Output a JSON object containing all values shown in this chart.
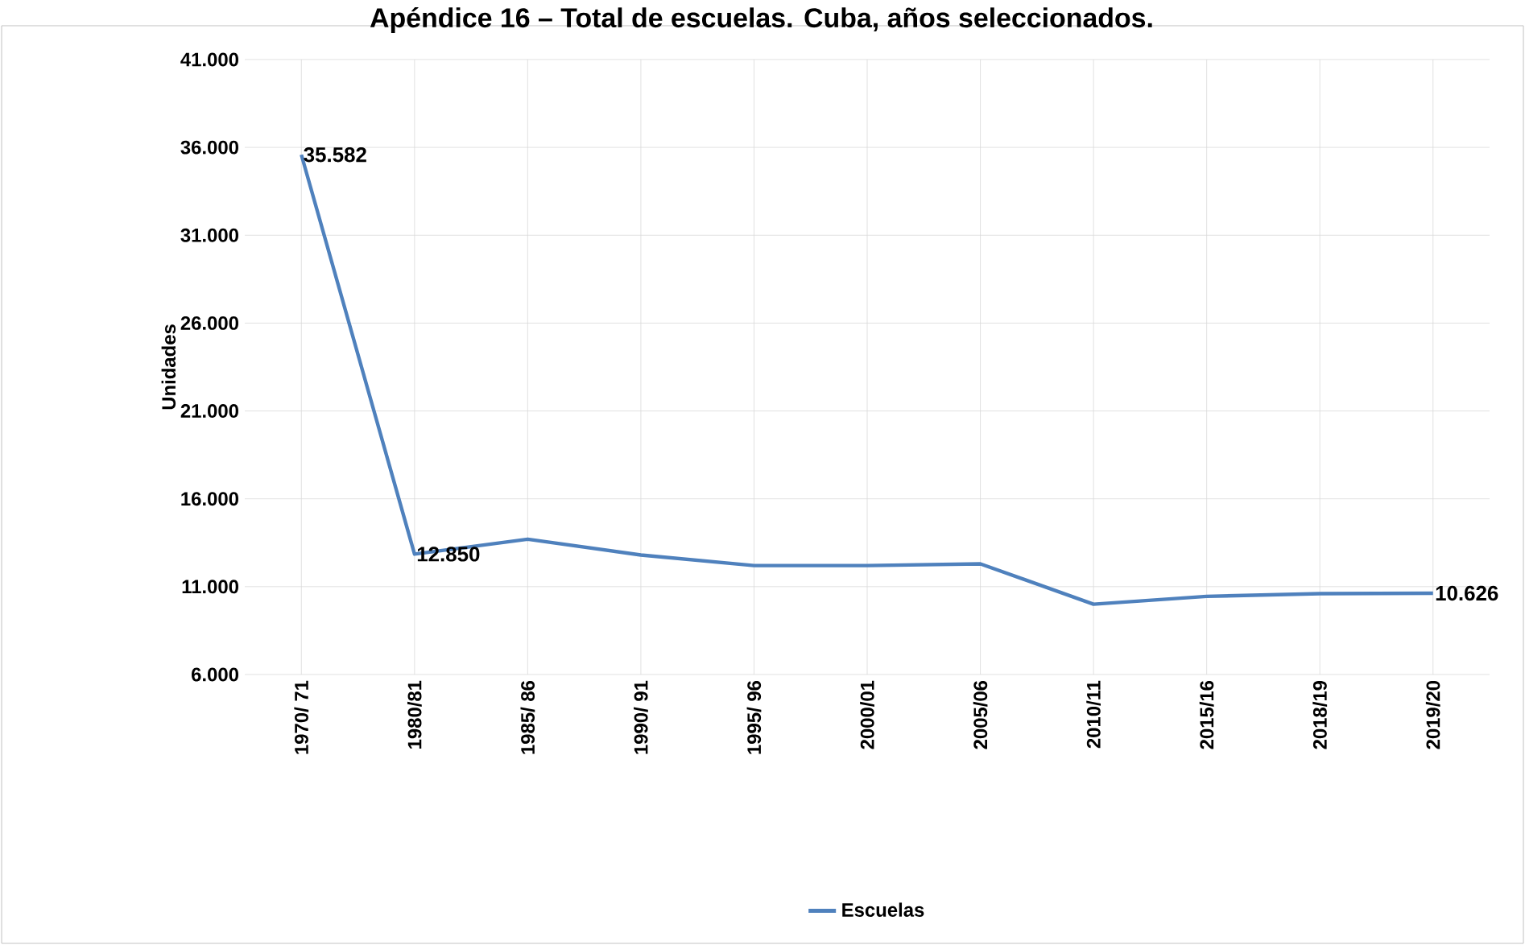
{
  "chart_data": {
    "type": "line",
    "title": "Apéndice 16 – Total de escuelas. Cuba, años seleccionados.",
    "ylabel": "Unidades",
    "categories": [
      "1970/ 71",
      "1980/81",
      "1985/ 86",
      "1990/ 91",
      "1995/ 96",
      "2000/01",
      "2005/06",
      "2010/11",
      "2015/16",
      "2018/19",
      "2019/20"
    ],
    "series": [
      {
        "name": "Escuelas",
        "color": "#4f81bd",
        "values": [
          35582,
          12850,
          13700,
          12800,
          12200,
          12200,
          12300,
          10000,
          10450,
          10600,
          10626
        ],
        "value_labels": [
          "35.582",
          "12.850",
          null,
          null,
          null,
          null,
          null,
          null,
          null,
          null,
          "10.626"
        ]
      }
    ],
    "ylim": [
      6000,
      41000
    ],
    "yticks": [
      {
        "value": 6000,
        "label": "6.000"
      },
      {
        "value": 11000,
        "label": "11.000"
      },
      {
        "value": 16000,
        "label": "16.000"
      },
      {
        "value": 21000,
        "label": "21.000"
      },
      {
        "value": 26000,
        "label": "26.000"
      },
      {
        "value": 31000,
        "label": "31.000"
      },
      {
        "value": 36000,
        "label": "36.000"
      },
      {
        "value": 41000,
        "label": "41.000"
      }
    ],
    "grid": true,
    "legend": "bottom",
    "marker": "none",
    "line_style": "solid"
  }
}
